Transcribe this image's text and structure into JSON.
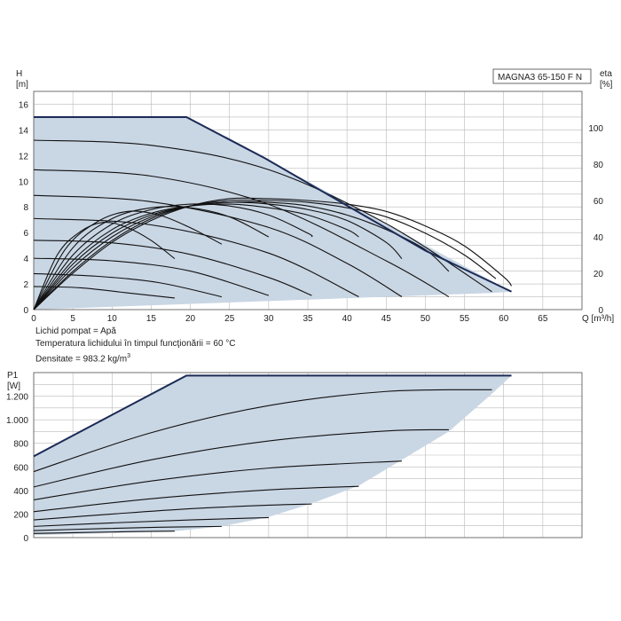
{
  "chart_data": [
    {
      "type": "line",
      "title": "MAGNA3 65-150 F N",
      "ylabel_name": "H",
      "ylabel_unit": "[m]",
      "y2label_name": "eta",
      "y2label_unit": "[%]",
      "xlabel": "Q [m³/h]",
      "xlim": [
        0,
        70
      ],
      "ylim": [
        0,
        17
      ],
      "y2lim": [
        0,
        120
      ],
      "x_ticks": [
        0,
        5,
        10,
        15,
        20,
        25,
        30,
        35,
        40,
        45,
        50,
        55,
        60,
        65
      ],
      "y_ticks": [
        0,
        2,
        4,
        6,
        8,
        10,
        12,
        14,
        16
      ],
      "y2_ticks": [
        0,
        20,
        40,
        60,
        80,
        100
      ],
      "grid": true,
      "envelope": {
        "x": [
          0,
          19.5,
          29.5,
          61,
          58.5,
          0
        ],
        "y": [
          15,
          15,
          11.8,
          1.4,
          1.3,
          0
        ]
      },
      "max_curve": {
        "x": [
          0,
          19.5,
          29.5,
          40,
          50,
          61
        ],
        "y": [
          15,
          15,
          11.8,
          8.1,
          4.6,
          1.4
        ]
      },
      "series": [
        {
          "name": "H",
          "x": [
            0,
            15,
            30,
            45,
            58.5
          ],
          "y": [
            13.2,
            12.8,
            10.9,
            6.7,
            1.4
          ]
        },
        {
          "name": "H",
          "x": [
            0,
            15,
            30,
            45,
            53
          ],
          "y": [
            10.9,
            10.4,
            8.2,
            3.8,
            1.0
          ]
        },
        {
          "name": "H",
          "x": [
            0,
            15,
            30,
            40,
            47
          ],
          "y": [
            8.9,
            8.4,
            6.4,
            3.6,
            1.0
          ]
        },
        {
          "name": "H",
          "x": [
            0,
            15,
            30,
            41.5
          ],
          "y": [
            7.1,
            6.6,
            4.4,
            1.0
          ]
        },
        {
          "name": "H",
          "x": [
            0,
            10,
            20,
            30,
            35.5
          ],
          "y": [
            5.4,
            5.2,
            4.3,
            2.5,
            1.1
          ]
        },
        {
          "name": "H",
          "x": [
            0,
            10,
            20,
            30
          ],
          "y": [
            4.0,
            3.8,
            3.0,
            1.1
          ]
        },
        {
          "name": "H",
          "x": [
            0,
            8,
            16,
            24
          ],
          "y": [
            2.8,
            2.6,
            2.1,
            1.0
          ]
        },
        {
          "name": "H",
          "x": [
            0,
            6,
            12,
            18
          ],
          "y": [
            1.8,
            1.7,
            1.3,
            0.9
          ]
        },
        {
          "name": "eta",
          "x": [
            0,
            5,
            10,
            15,
            20,
            25,
            30,
            35,
            40,
            45,
            50,
            55,
            60,
            61
          ],
          "y": [
            0,
            20,
            37,
            49,
            57,
            61,
            61,
            60,
            58,
            54,
            46,
            35,
            18,
            13
          ]
        },
        {
          "name": "eta",
          "x": [
            0,
            5,
            10,
            15,
            20,
            25,
            30,
            35,
            40,
            45,
            50,
            55,
            59
          ],
          "y": [
            0,
            21,
            38,
            50,
            57,
            60,
            60,
            59,
            56,
            51,
            42,
            30,
            17
          ]
        },
        {
          "name": "eta",
          "x": [
            0,
            5,
            10,
            15,
            20,
            25,
            30,
            35,
            40,
            45,
            50,
            53
          ],
          "y": [
            0,
            23,
            40,
            51,
            57,
            59,
            59,
            57,
            52,
            44,
            33,
            21
          ]
        },
        {
          "name": "eta",
          "x": [
            0,
            5,
            10,
            15,
            20,
            25,
            30,
            35,
            40,
            45,
            47
          ],
          "y": [
            0,
            25,
            42,
            52,
            57,
            59,
            58,
            55,
            49,
            37,
            28
          ]
        },
        {
          "name": "eta",
          "x": [
            0,
            5,
            10,
            15,
            20,
            25,
            30,
            35,
            40,
            41.5
          ],
          "y": [
            0,
            27,
            44,
            53,
            57,
            58,
            56,
            52,
            44,
            40
          ]
        },
        {
          "name": "eta",
          "x": [
            0,
            5,
            10,
            15,
            20,
            25,
            30,
            35,
            35.5
          ],
          "y": [
            0,
            30,
            47,
            55,
            58,
            57,
            52,
            42,
            40
          ]
        },
        {
          "name": "eta",
          "x": [
            0,
            5,
            10,
            15,
            20,
            25,
            30
          ],
          "y": [
            0,
            34,
            50,
            56,
            56,
            51,
            40
          ]
        },
        {
          "name": "eta",
          "x": [
            0,
            4,
            8,
            12,
            16,
            20,
            24
          ],
          "y": [
            0,
            33,
            48,
            54,
            52,
            45,
            36
          ]
        },
        {
          "name": "eta",
          "x": [
            0,
            3,
            6,
            9,
            12,
            15,
            18
          ],
          "y": [
            0,
            30,
            43,
            48,
            45,
            38,
            28
          ]
        }
      ]
    },
    {
      "type": "line",
      "ylabel_name": "P1",
      "ylabel_unit": "[W]",
      "xlim": [
        0,
        70
      ],
      "ylim": [
        0,
        1400
      ],
      "y_ticks": [
        0,
        200,
        400,
        600,
        800,
        1000,
        1200
      ],
      "y_tick_labels": [
        "0",
        "200",
        "400",
        "600",
        "800",
        "1.000",
        "1.200"
      ],
      "grid": true,
      "envelope": {
        "x": [
          0,
          19.5,
          61,
          58.5,
          53,
          47,
          41.5,
          35.5,
          30,
          24,
          18,
          0
        ],
        "y": [
          690,
          1375,
          1375,
          1220,
          900,
          660,
          440,
          290,
          175,
          95,
          55,
          20
        ]
      },
      "max_curve": {
        "x": [
          0,
          19.5,
          61
        ],
        "y": [
          690,
          1375,
          1375
        ]
      },
      "series": [
        {
          "name": "P1",
          "x": [
            0,
            15,
            30,
            45,
            58.5
          ],
          "y": [
            560,
            890,
            1120,
            1240,
            1255
          ]
        },
        {
          "name": "P1",
          "x": [
            0,
            15,
            30,
            45,
            53
          ],
          "y": [
            430,
            660,
            820,
            905,
            915
          ]
        },
        {
          "name": "P1",
          "x": [
            0,
            15,
            30,
            47
          ],
          "y": [
            320,
            480,
            590,
            650
          ]
        },
        {
          "name": "P1",
          "x": [
            0,
            15,
            30,
            41.5
          ],
          "y": [
            220,
            330,
            405,
            435
          ]
        },
        {
          "name": "P1",
          "x": [
            0,
            10,
            20,
            30,
            35.5
          ],
          "y": [
            150,
            200,
            245,
            275,
            285
          ]
        },
        {
          "name": "P1",
          "x": [
            0,
            10,
            20,
            30
          ],
          "y": [
            95,
            125,
            150,
            170
          ]
        },
        {
          "name": "P1",
          "x": [
            0,
            8,
            16,
            24
          ],
          "y": [
            60,
            75,
            88,
            95
          ]
        },
        {
          "name": "P1",
          "x": [
            0,
            6,
            12,
            18
          ],
          "y": [
            35,
            43,
            50,
            55
          ]
        }
      ]
    }
  ],
  "notes": {
    "fluid": "Lichid pompat = Apă",
    "temperature": "Temperatura lichidului în timpul funcţionării = 60 °C",
    "density_prefix": "Densitate = 983.2 kg/m",
    "density_exp": "3"
  }
}
